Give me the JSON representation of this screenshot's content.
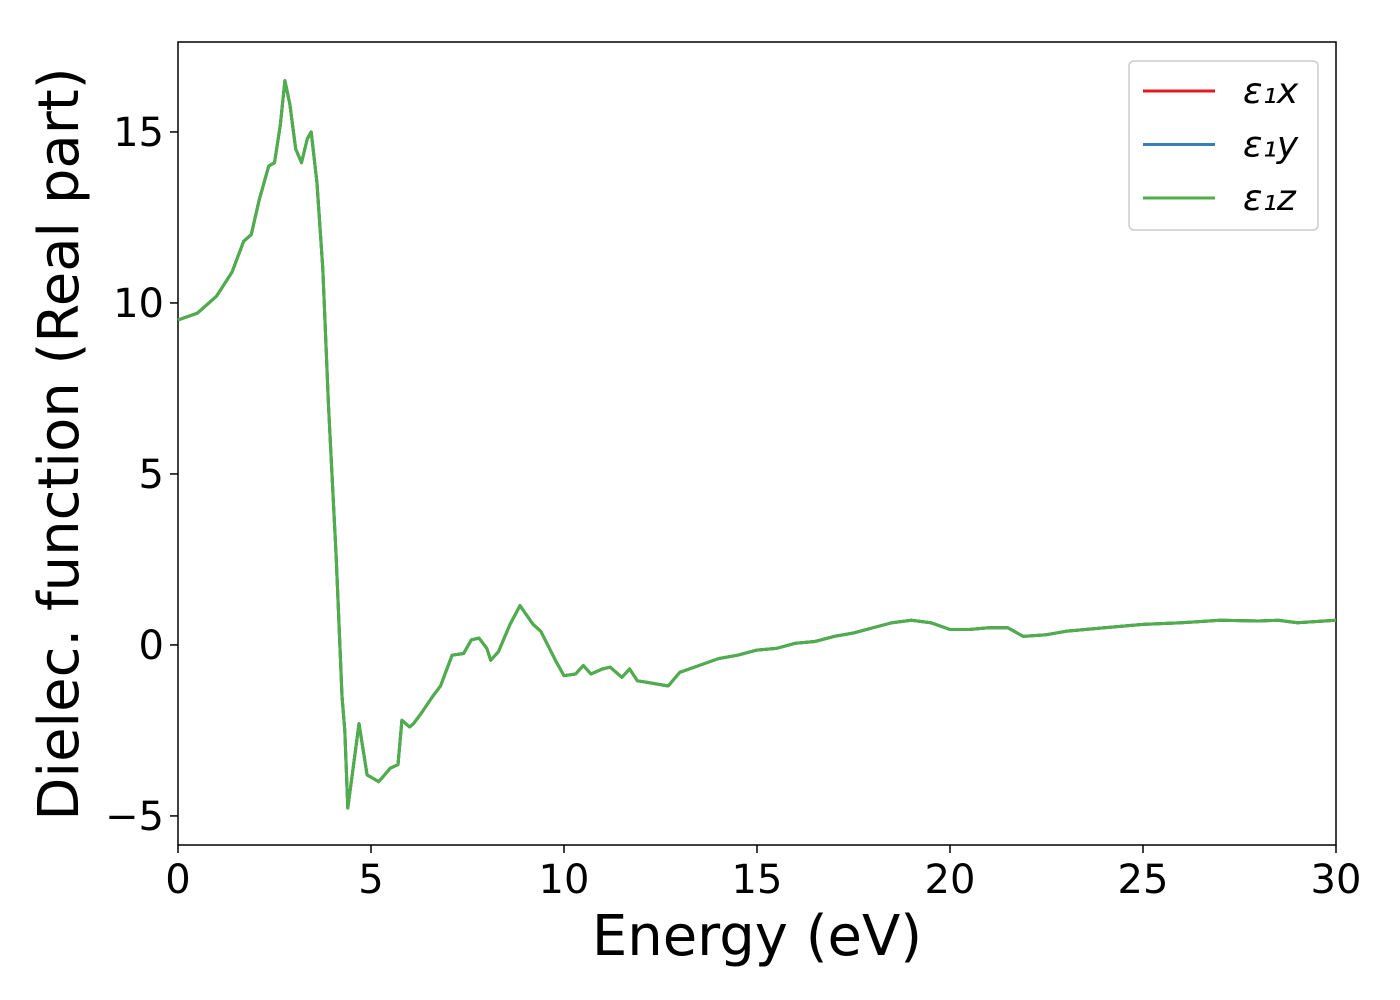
{
  "chart_data": {
    "type": "line",
    "xlabel": "Energy (eV)",
    "ylabel": "Dielec. function (Real part)",
    "x": [
      0,
      0.5,
      1.0,
      1.4,
      1.7,
      1.9,
      2.1,
      2.35,
      2.5,
      2.65,
      2.77,
      2.9,
      3.05,
      3.2,
      3.35,
      3.45,
      3.6,
      3.75,
      3.9,
      4.1,
      4.25,
      4.32,
      4.4,
      4.55,
      4.69,
      4.9,
      5.2,
      5.5,
      5.7,
      5.8,
      6.0,
      6.1,
      6.3,
      6.6,
      6.8,
      7.1,
      7.4,
      7.6,
      7.8,
      8.0,
      8.1,
      8.3,
      8.6,
      8.86,
      9.2,
      9.4,
      9.8,
      10.0,
      10.3,
      10.5,
      10.7,
      11.0,
      11.2,
      11.5,
      11.7,
      11.9,
      12.2,
      12.7,
      13.0,
      13.5,
      14.0,
      14.5,
      15.0,
      15.5,
      16.0,
      16.5,
      17.0,
      17.5,
      18.0,
      18.5,
      19.0,
      19.5,
      20.0,
      20.5,
      21.0,
      21.5,
      21.9,
      22.5,
      23.0,
      24.0,
      25.0,
      26.0,
      27.0,
      28.0,
      28.5,
      29.0,
      30.0
    ],
    "series": [
      {
        "name": "ε₁x",
        "color": "#e41a1c",
        "values": [
          9.5,
          9.7,
          10.2,
          10.9,
          11.8,
          12.0,
          13.0,
          14.0,
          14.1,
          15.2,
          16.5,
          15.8,
          14.5,
          14.1,
          14.8,
          15.0,
          13.5,
          11.0,
          7.0,
          2.5,
          -1.5,
          -2.5,
          -4.77,
          -3.5,
          -2.3,
          -3.8,
          -4.0,
          -3.6,
          -3.5,
          -2.2,
          -2.4,
          -2.3,
          -2.0,
          -1.5,
          -1.2,
          -0.3,
          -0.25,
          0.15,
          0.2,
          -0.1,
          -0.45,
          -0.2,
          0.6,
          1.15,
          0.6,
          0.4,
          -0.5,
          -0.9,
          -0.85,
          -0.6,
          -0.85,
          -0.7,
          -0.65,
          -0.95,
          -0.7,
          -1.05,
          -1.1,
          -1.2,
          -0.8,
          -0.6,
          -0.4,
          -0.3,
          -0.15,
          -0.1,
          0.05,
          0.1,
          0.25,
          0.35,
          0.5,
          0.65,
          0.72,
          0.65,
          0.45,
          0.45,
          0.5,
          0.5,
          0.25,
          0.3,
          0.4,
          0.5,
          0.6,
          0.65,
          0.72,
          0.7,
          0.72,
          0.65,
          0.72
        ]
      },
      {
        "name": "ε₁y",
        "color": "#377eb8",
        "values": [
          9.5,
          9.7,
          10.2,
          10.9,
          11.8,
          12.0,
          13.0,
          14.0,
          14.1,
          15.2,
          16.5,
          15.8,
          14.5,
          14.1,
          14.8,
          15.0,
          13.5,
          11.0,
          7.0,
          2.5,
          -1.5,
          -2.5,
          -4.77,
          -3.5,
          -2.3,
          -3.8,
          -4.0,
          -3.6,
          -3.5,
          -2.2,
          -2.4,
          -2.3,
          -2.0,
          -1.5,
          -1.2,
          -0.3,
          -0.25,
          0.15,
          0.2,
          -0.1,
          -0.45,
          -0.2,
          0.6,
          1.15,
          0.6,
          0.4,
          -0.5,
          -0.9,
          -0.85,
          -0.6,
          -0.85,
          -0.7,
          -0.65,
          -0.95,
          -0.7,
          -1.05,
          -1.1,
          -1.2,
          -0.8,
          -0.6,
          -0.4,
          -0.3,
          -0.15,
          -0.1,
          0.05,
          0.1,
          0.25,
          0.35,
          0.5,
          0.65,
          0.72,
          0.65,
          0.45,
          0.45,
          0.5,
          0.5,
          0.25,
          0.3,
          0.4,
          0.5,
          0.6,
          0.65,
          0.72,
          0.7,
          0.72,
          0.65,
          0.72
        ]
      },
      {
        "name": "ε₁z",
        "color": "#4daf4a",
        "values": [
          9.5,
          9.7,
          10.2,
          10.9,
          11.8,
          12.0,
          13.0,
          14.0,
          14.1,
          15.2,
          16.5,
          15.8,
          14.5,
          14.1,
          14.8,
          15.0,
          13.5,
          11.0,
          7.0,
          2.5,
          -1.5,
          -2.5,
          -4.77,
          -3.5,
          -2.3,
          -3.8,
          -4.0,
          -3.6,
          -3.5,
          -2.2,
          -2.4,
          -2.3,
          -2.0,
          -1.5,
          -1.2,
          -0.3,
          -0.25,
          0.15,
          0.2,
          -0.1,
          -0.45,
          -0.2,
          0.6,
          1.15,
          0.6,
          0.4,
          -0.5,
          -0.9,
          -0.85,
          -0.6,
          -0.85,
          -0.7,
          -0.65,
          -0.95,
          -0.7,
          -1.05,
          -1.1,
          -1.2,
          -0.8,
          -0.6,
          -0.4,
          -0.3,
          -0.15,
          -0.1,
          0.05,
          0.1,
          0.25,
          0.35,
          0.5,
          0.65,
          0.72,
          0.65,
          0.45,
          0.45,
          0.5,
          0.5,
          0.25,
          0.3,
          0.4,
          0.5,
          0.6,
          0.65,
          0.72,
          0.7,
          0.72,
          0.65,
          0.72
        ]
      }
    ],
    "xlim": [
      0,
      30
    ],
    "xticks": [
      0,
      5,
      10,
      15,
      20,
      25,
      30
    ],
    "ylim": [
      -5.85,
      17.63
    ],
    "yticks": [
      {
        "value": -5,
        "label": "−5"
      },
      0,
      5,
      10,
      15
    ],
    "grid": false,
    "legend": "upper right"
  }
}
